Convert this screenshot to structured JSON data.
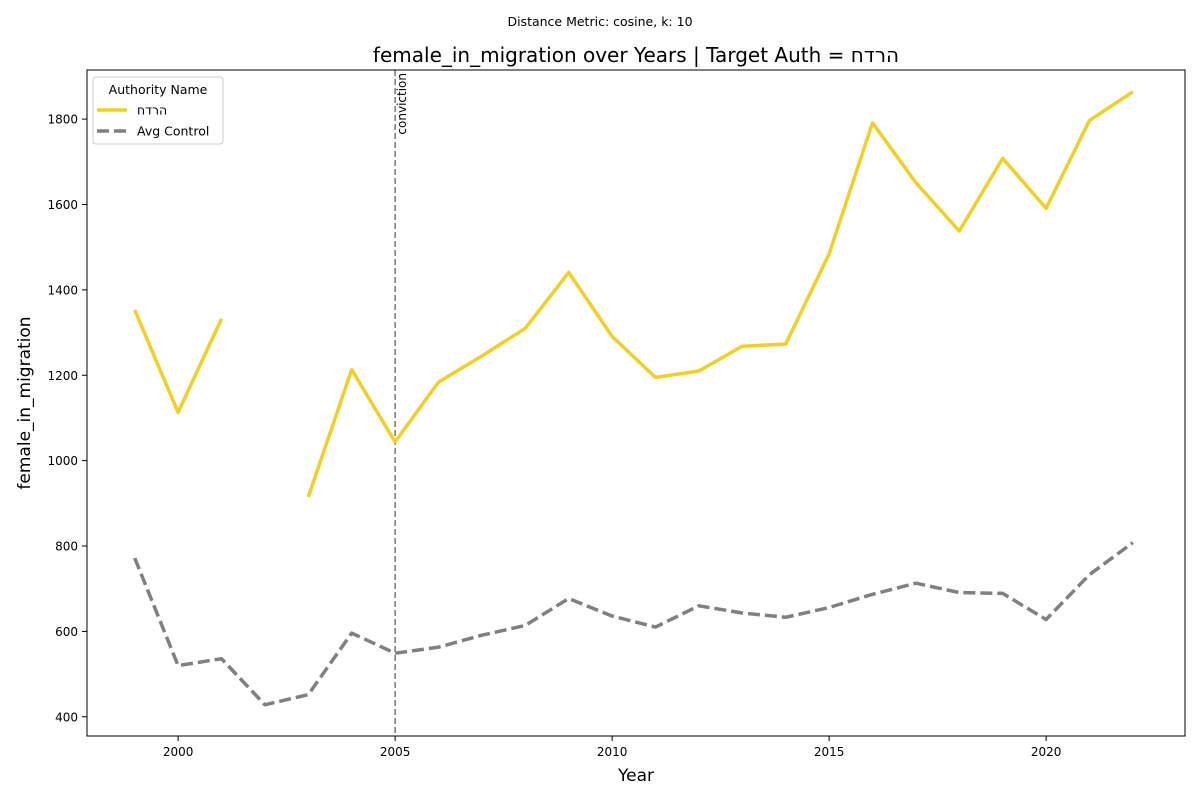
{
  "chart_data": {
    "type": "line",
    "suptitle": "Distance Metric: cosine, k: 10",
    "title": "female_in_migration over Years | Target Auth = הרדח",
    "xlabel": "Year",
    "ylabel": "female_in_migration",
    "xlim": [
      1997.9,
      2023.2
    ],
    "ylim": [
      355,
      1915
    ],
    "xticks": [
      2000,
      2005,
      2010,
      2015,
      2020
    ],
    "yticks": [
      400,
      600,
      800,
      1000,
      1200,
      1400,
      1600,
      1800
    ],
    "grid": false,
    "legend": {
      "title": "Authority Name",
      "position": "top-left"
    },
    "vline": {
      "x": 2005,
      "label": "conviction",
      "color": "#808080"
    },
    "series": [
      {
        "name": "הרדח",
        "color": "#f2cf23",
        "style": "solid",
        "x": [
          1999,
          2000,
          2001,
          2002,
          2003,
          2004,
          2005,
          2006,
          2007,
          2008,
          2009,
          2010,
          2011,
          2012,
          2013,
          2014,
          2015,
          2016,
          2017,
          2018,
          2019,
          2020,
          2021,
          2022
        ],
        "y": [
          1353,
          1113,
          1332,
          null,
          915,
          1213,
          1044,
          1184,
          1245,
          1310,
          1441,
          1291,
          1195,
          1210,
          1268,
          1273,
          1484,
          1791,
          1651,
          1538,
          1708,
          1591,
          1797,
          1864
        ]
      },
      {
        "name": "Avg Control",
        "color": "#808080",
        "style": "dashed",
        "x": [
          1999,
          2000,
          2001,
          2002,
          2003,
          2004,
          2005,
          2006,
          2007,
          2008,
          2009,
          2010,
          2011,
          2012,
          2013,
          2014,
          2015,
          2016,
          2017,
          2018,
          2019,
          2020,
          2021,
          2022
        ],
        "y": [
          772,
          520,
          536,
          428,
          452,
          596,
          549,
          563,
          591,
          614,
          677,
          636,
          610,
          660,
          643,
          633,
          656,
          687,
          713,
          691,
          689,
          628,
          733,
          808
        ]
      }
    ]
  }
}
